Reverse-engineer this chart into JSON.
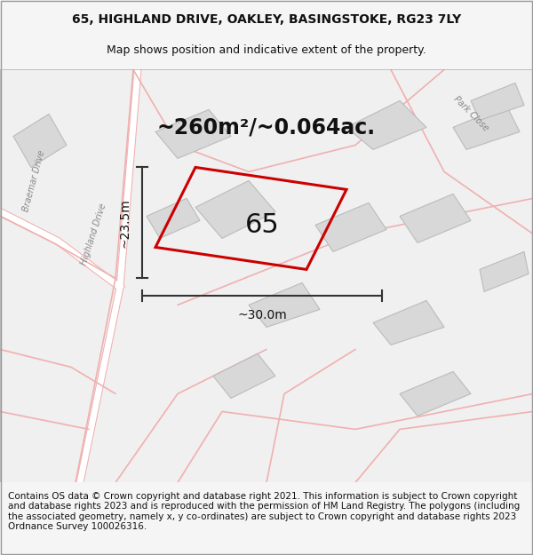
{
  "title_line1": "65, HIGHLAND DRIVE, OAKLEY, BASINGSTOKE, RG23 7LY",
  "title_line2": "Map shows position and indicative extent of the property.",
  "area_text": "~260m²/~0.064ac.",
  "plot_number": "65",
  "dim_vertical": "~23.5m",
  "dim_horizontal": "~30.0m",
  "footer_text": "Contains OS data © Crown copyright and database right 2021. This information is subject to Crown copyright and database rights 2023 and is reproduced with the permission of HM Land Registry. The polygons (including the associated geometry, namely x, y co-ordinates) are subject to Crown copyright and database rights 2023 Ordnance Survey 100026316.",
  "bg_color": "#f5f5f5",
  "map_bg": "#f0f0f0",
  "building_color": "#d8d8d8",
  "road_line_color": "#f0b0b0",
  "plot_outline_color": "#cc0000",
  "dim_line_color": "#333333",
  "title_fontsize": 10,
  "subtitle_fontsize": 9,
  "area_fontsize": 17,
  "plot_label_fontsize": 22,
  "dim_fontsize": 10,
  "footer_fontsize": 7.5
}
